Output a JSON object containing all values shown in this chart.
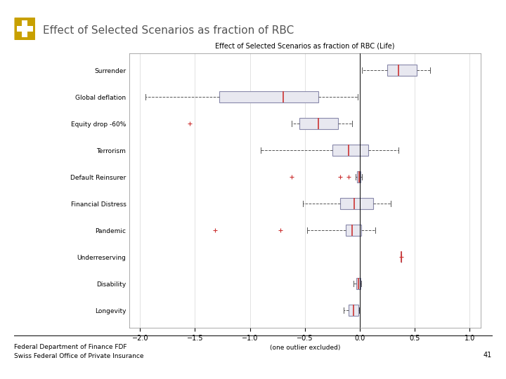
{
  "title_main": "Effect of Selected Scenarios as fraction of RBC",
  "chart_title": "Effect of Selected Scenarios as fraction of RBC (Life)",
  "footer_line1": "Federal Department of Finance FDF",
  "footer_line2": "Swiss Federal Office of Private Insurance",
  "footer_number": "41",
  "xlim": [
    -2.1,
    1.1
  ],
  "xticks": [
    -2,
    -1.5,
    -1,
    -0.5,
    0,
    0.5,
    1
  ],
  "xlabel_note": "(one outlier excluded)",
  "box_data": [
    {
      "label": "Surrender",
      "whislo": 0.02,
      "q1": 0.25,
      "med": 0.35,
      "q3": 0.52,
      "whishi": 0.64,
      "fliers": []
    },
    {
      "label": "Global deflation",
      "whislo": -1.95,
      "q1": -1.28,
      "med": -0.7,
      "q3": -0.38,
      "whishi": -0.02,
      "fliers": []
    },
    {
      "label": "Equity drop -60%",
      "whislo": -0.62,
      "q1": -0.55,
      "med": -0.38,
      "q3": -0.2,
      "whishi": -0.07,
      "fliers": [
        -1.55
      ]
    },
    {
      "label": "Terrorism",
      "whislo": -0.9,
      "q1": -0.25,
      "med": -0.1,
      "q3": 0.08,
      "whishi": 0.35,
      "fliers": []
    },
    {
      "label": "Default Reinsurer",
      "whislo": -0.04,
      "q1": -0.025,
      "med": -0.005,
      "q3": 0.005,
      "whishi": 0.02,
      "fliers": [
        -0.62,
        -0.18,
        -0.1
      ]
    },
    {
      "label": "Financial Distress",
      "whislo": -0.52,
      "q1": -0.18,
      "med": -0.05,
      "q3": 0.12,
      "whishi": 0.28,
      "fliers": []
    },
    {
      "label": "Pandemic",
      "whislo": -0.48,
      "q1": -0.13,
      "med": -0.07,
      "q3": 0.01,
      "whishi": 0.14,
      "fliers": [
        -1.32,
        -0.72
      ]
    },
    {
      "label": "Underreserving",
      "whislo": 0.38,
      "q1": 0.38,
      "med": 0.38,
      "q3": 0.38,
      "whishi": 0.38,
      "fliers": [
        0.38
      ]
    },
    {
      "label": "Disability",
      "whislo": -0.055,
      "q1": -0.035,
      "med": -0.015,
      "q3": 0.005,
      "whishi": 0.015,
      "fliers": []
    },
    {
      "label": "Longevity",
      "whislo": -0.15,
      "q1": -0.1,
      "med": -0.055,
      "q3": -0.015,
      "whishi": -0.005,
      "fliers": []
    }
  ],
  "box_facecolor": "#e8e8f0",
  "box_edgecolor": "#8888aa",
  "median_color": "#cc3333",
  "whisker_color": "#555555",
  "cap_color": "#555555",
  "flier_color": "#cc3333",
  "background_color": "#ffffff",
  "logo_color": "#c8a000",
  "title_color": "#555555"
}
